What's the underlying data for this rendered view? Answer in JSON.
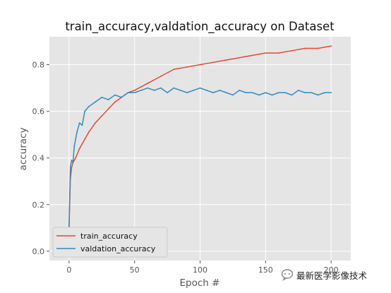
{
  "chart_data": {
    "type": "line",
    "title": "train_accuracy,valdation_accuracy on Dataset",
    "xlabel": "Epoch #",
    "ylabel": "accuracy",
    "xlim": [
      -15,
      215
    ],
    "ylim": [
      -0.04,
      0.92
    ],
    "x_ticks": [
      0,
      50,
      100,
      150,
      200
    ],
    "y_ticks": [
      0.0,
      0.2,
      0.4,
      0.6,
      0.8
    ],
    "y_tick_labels": [
      "0.0",
      "0.2",
      "0.4",
      "0.6",
      "0.8"
    ],
    "grid": true,
    "legend_position": "lower-left",
    "series": [
      {
        "name": "train_accuracy",
        "color": "#e24a33",
        "x": [
          0,
          1,
          2,
          3,
          5,
          8,
          10,
          12,
          15,
          20,
          25,
          30,
          35,
          40,
          45,
          50,
          60,
          70,
          80,
          90,
          100,
          110,
          120,
          130,
          140,
          150,
          160,
          170,
          180,
          190,
          200
        ],
        "y": [
          0.1,
          0.31,
          0.36,
          0.38,
          0.4,
          0.44,
          0.46,
          0.48,
          0.51,
          0.55,
          0.58,
          0.61,
          0.64,
          0.66,
          0.68,
          0.69,
          0.72,
          0.75,
          0.78,
          0.79,
          0.8,
          0.81,
          0.82,
          0.83,
          0.84,
          0.85,
          0.85,
          0.86,
          0.87,
          0.87,
          0.88
        ]
      },
      {
        "name": "valdation_accuracy",
        "color": "#348abd",
        "x": [
          0,
          1,
          2,
          3,
          4,
          6,
          8,
          10,
          12,
          15,
          20,
          25,
          30,
          35,
          40,
          45,
          50,
          55,
          60,
          65,
          70,
          75,
          80,
          85,
          90,
          95,
          100,
          105,
          110,
          115,
          120,
          125,
          130,
          135,
          140,
          145,
          150,
          155,
          160,
          165,
          170,
          175,
          180,
          185,
          190,
          195,
          200
        ],
        "y": [
          0.1,
          0.36,
          0.39,
          0.38,
          0.45,
          0.51,
          0.55,
          0.54,
          0.6,
          0.62,
          0.64,
          0.66,
          0.65,
          0.67,
          0.66,
          0.68,
          0.68,
          0.69,
          0.7,
          0.69,
          0.7,
          0.68,
          0.7,
          0.69,
          0.68,
          0.69,
          0.7,
          0.69,
          0.68,
          0.69,
          0.68,
          0.67,
          0.69,
          0.68,
          0.68,
          0.67,
          0.68,
          0.67,
          0.68,
          0.68,
          0.67,
          0.69,
          0.68,
          0.68,
          0.67,
          0.68,
          0.68
        ]
      }
    ]
  },
  "watermark": {
    "text": "最新医学影像技术",
    "logo_icon": "chat-bubble-icon"
  }
}
